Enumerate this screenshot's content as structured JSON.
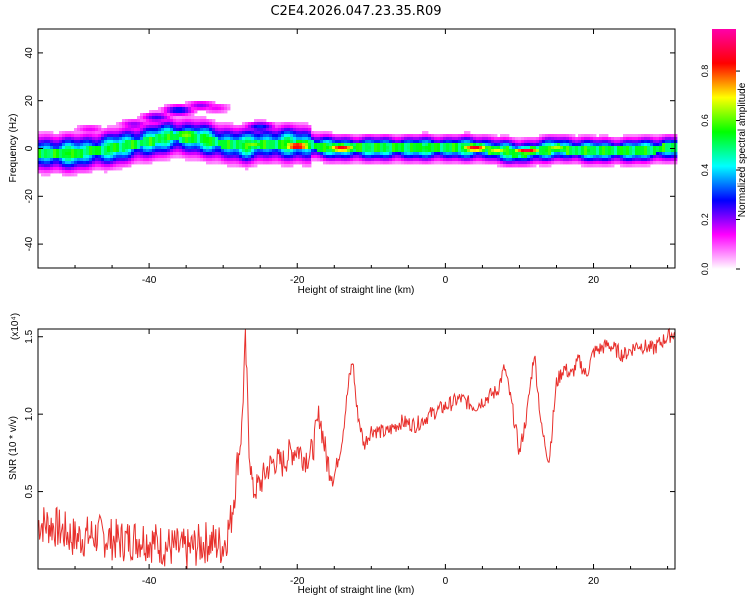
{
  "title": "C2E4.2026.047.23.35.R09",
  "chart_data": [
    {
      "type": "heatmap",
      "panel": "spectrogram",
      "xlabel": "Height of straight line (km)",
      "ylabel": "Frequency (Hz)",
      "xlim": [
        -55,
        31
      ],
      "ylim": [
        -50,
        50
      ],
      "xticks": [
        -40,
        -20,
        0,
        20
      ],
      "yticks": [
        -40,
        -20,
        0,
        20,
        40
      ],
      "colorbar": {
        "label": "Normalized spectral amplitude",
        "range": [
          0,
          0.97
        ],
        "ticks": [
          0.0,
          0.2,
          0.4,
          0.6,
          0.8
        ],
        "colors": [
          "#ffffff",
          "#ff00ff",
          "#0000ff",
          "#00ffff",
          "#00ff00",
          "#ffff00",
          "#ff0000",
          "#ff00aa"
        ]
      },
      "band_center_freq": {
        "x": [
          -55,
          -50,
          -45,
          -40,
          -37,
          -33,
          -30,
          -27,
          -25,
          -20,
          -15,
          -10,
          -5,
          0,
          5,
          10,
          15,
          20,
          25,
          30
        ],
        "y": [
          -2,
          -2,
          0,
          3,
          5,
          4,
          2,
          1,
          2,
          2,
          0,
          0,
          0,
          0,
          0,
          -2,
          0,
          -1,
          -1,
          0
        ]
      },
      "peaks": [
        {
          "x": -20,
          "y": 1,
          "v": 0.95
        },
        {
          "x": -14,
          "y": 0,
          "v": 0.9
        },
        {
          "x": 4,
          "y": 0,
          "v": 0.9
        },
        {
          "x": 11,
          "y": -1,
          "v": 0.9
        },
        {
          "x": -35,
          "y": 6,
          "v": 0.7
        },
        {
          "x": -26,
          "y": 2,
          "v": 0.65
        },
        {
          "x": 15,
          "y": 0,
          "v": 0.7
        },
        {
          "x": 7,
          "y": -1,
          "v": 0.7
        }
      ],
      "patches": [
        {
          "x": -42,
          "y": 10,
          "v": 0.2
        },
        {
          "x": -39,
          "y": 13,
          "v": 0.25
        },
        {
          "x": -36,
          "y": 16,
          "v": 0.3
        },
        {
          "x": -33,
          "y": 18,
          "v": 0.2
        },
        {
          "x": -31,
          "y": 17,
          "v": 0.15
        },
        {
          "x": -25,
          "y": 9,
          "v": 0.3
        },
        {
          "x": -48,
          "y": 8,
          "v": 0.15
        }
      ]
    },
    {
      "type": "line",
      "panel": "snr",
      "xlabel": "Height of straight line (km)",
      "ylabel": "SNR (10 * v/v)",
      "y_multiplier_label": "(x10⁴)",
      "xlim": [
        -55,
        31
      ],
      "ylim": [
        0,
        1.55
      ],
      "xticks": [
        -40,
        -20,
        0,
        20
      ],
      "yticks": [
        0.5,
        1.0,
        1.5
      ],
      "color": "#e8302c",
      "series": [
        {
          "x": [
            -55,
            -53,
            -50,
            -47,
            -44,
            -41,
            -38,
            -35,
            -32,
            -30,
            -29,
            -28,
            -27.5,
            -27,
            -26.5,
            -26,
            -25,
            -24,
            -23,
            -22,
            -21,
            -20,
            -19,
            -18,
            -17,
            -16,
            -15,
            -14,
            -13,
            -12.5,
            -12,
            -11,
            -10,
            -8,
            -6,
            -4,
            -2,
            0,
            2,
            4,
            6,
            7,
            8,
            9,
            10,
            11,
            12,
            13,
            14,
            15,
            16,
            17,
            18,
            19,
            20,
            22,
            24,
            26,
            28,
            30,
            31
          ],
          "y": [
            0.3,
            0.28,
            0.2,
            0.22,
            0.18,
            0.2,
            0.15,
            0.12,
            0.18,
            0.15,
            0.3,
            0.7,
            0.9,
            1.48,
            0.8,
            0.5,
            0.55,
            0.65,
            0.7,
            0.68,
            0.75,
            0.78,
            0.72,
            0.75,
            1.0,
            0.7,
            0.6,
            0.82,
            1.22,
            1.35,
            1.05,
            0.8,
            0.9,
            0.88,
            0.95,
            0.93,
            1.0,
            1.05,
            1.1,
            1.05,
            1.12,
            1.15,
            1.3,
            1.05,
            0.75,
            1.0,
            1.4,
            0.9,
            0.7,
            1.2,
            1.3,
            1.25,
            1.35,
            1.25,
            1.4,
            1.45,
            1.38,
            1.45,
            1.42,
            1.5,
            1.53
          ]
        }
      ]
    }
  ]
}
